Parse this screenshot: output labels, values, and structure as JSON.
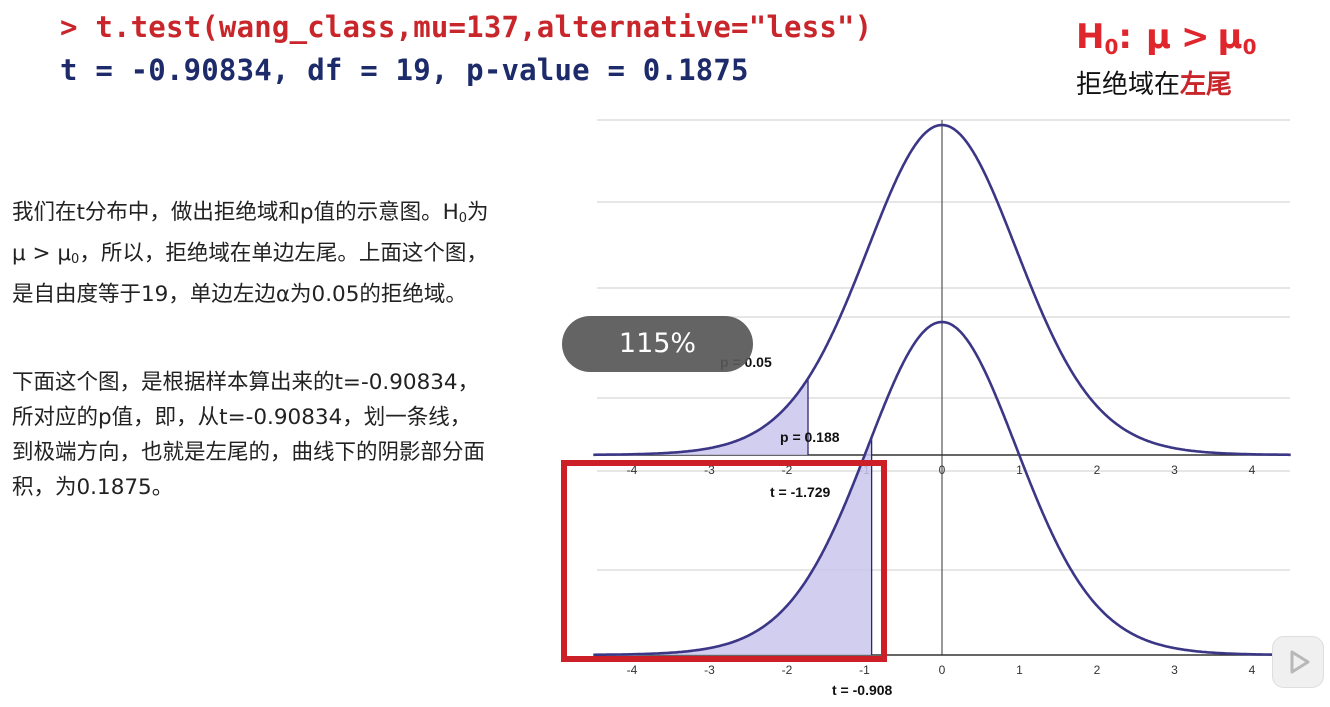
{
  "header": {
    "command": "> t.test(wang_class,mu=137,alternative=\"less\")",
    "output": "t = -0.90834, df = 19, p-value = 0.1875"
  },
  "hypothesis": {
    "h": "H",
    "sub0": "0",
    "colon": ":",
    "mu": "μ",
    "gt": ">",
    "mu0": "μ",
    "sub1": "0",
    "rejection_prefix": "拒绝域在",
    "rejection_tail": "左尾"
  },
  "text": {
    "p1_a": "我们在t分布中，做出拒绝域和p值的示意图。H",
    "p1_sub0": "0",
    "p1_b": "为μ > μ",
    "p1_sub1": "0",
    "p1_c": "，所以，拒绝域在单边左尾。上面这个图，是自由度等于19，单边左边α为0.05的拒绝域。",
    "p2": "下面这个图，是根据样本算出来的t=-0.90834，所对应的p值，即，从t=-0.90834，划一条线，到极端方向，也就是左尾的，曲线下的阴影部分面积，为0.1875。"
  },
  "overlay": {
    "zoom_label": "115%"
  },
  "chart_data": [
    {
      "type": "area",
      "distribution": "t",
      "df": 19,
      "x_ticks": [
        "-4",
        "-3",
        "-2",
        "-1",
        "0",
        "1",
        "2",
        "3",
        "4"
      ],
      "shaded_left_of": -1.729,
      "shaded_area_label": "p = 0.05",
      "cutoff_label": "t = -1.729",
      "line_color": "#3b3685",
      "fill_color": "#c9c5ec"
    },
    {
      "type": "area",
      "distribution": "t",
      "df": 19,
      "x_ticks": [
        "-4",
        "-3",
        "-2",
        "-1",
        "0",
        "1",
        "2",
        "3",
        "4"
      ],
      "shaded_left_of": -0.908,
      "shaded_area_label": "p = 0.188",
      "cutoff_label": "t = -0.908",
      "line_color": "#3b3685",
      "fill_color": "#c9c5ec",
      "highlight_box_color": "#cc1f28"
    }
  ]
}
